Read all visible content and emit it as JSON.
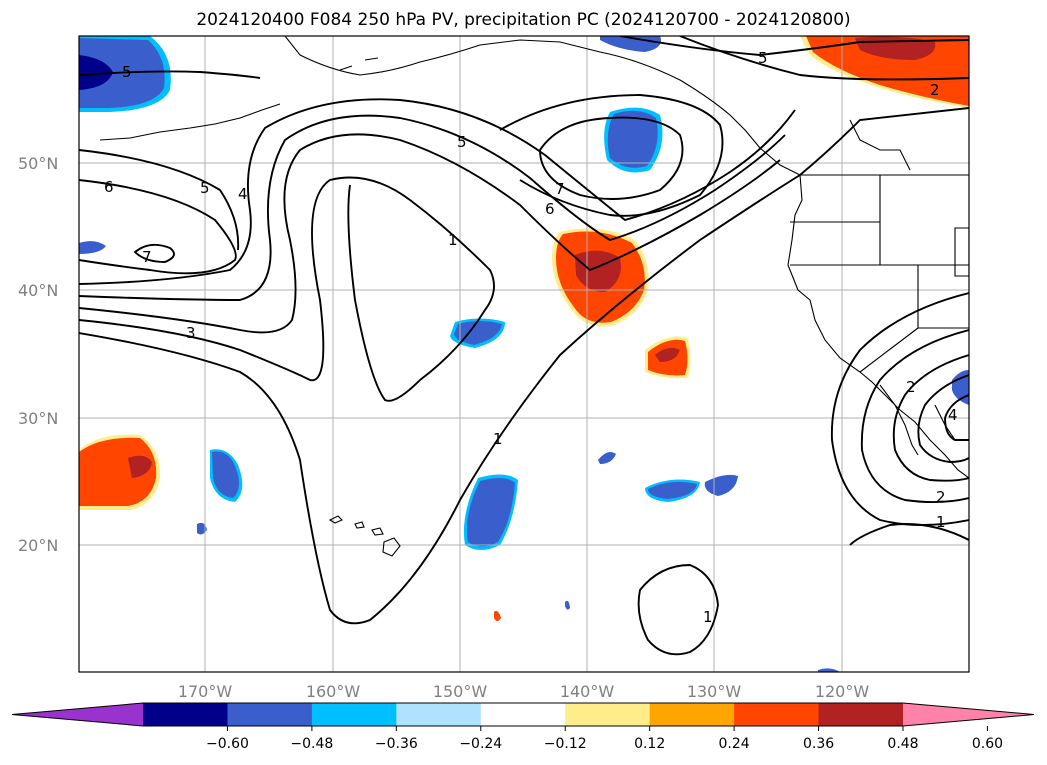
{
  "title": "2024120400 F084 250 hPa PV, precipitation PC (2024120700 - 2024120800)",
  "lat_labels": [
    "50°N",
    "40°N",
    "30°N",
    "20°N"
  ],
  "lon_labels": [
    "170°W",
    "160°W",
    "150°W",
    "140°W",
    "130°W",
    "120°W"
  ],
  "contour_labels": [
    "5",
    "5",
    "2",
    "6",
    "5",
    "4",
    "7",
    "1",
    "5",
    "7",
    "6",
    "3",
    "1",
    "1",
    "2",
    "1",
    "2",
    "4"
  ],
  "colorbar": {
    "ticks": [
      "−0.60",
      "−0.48",
      "−0.36",
      "−0.24",
      "−0.12",
      "0.12",
      "0.24",
      "0.36",
      "0.48",
      "0.60"
    ],
    "colors": [
      "#9a32cd",
      "#00008b",
      "#3a5fcd",
      "#00bfff",
      "#b0e2ff",
      "#ffffff",
      "#ffec8b",
      "#ffa500",
      "#ff4500",
      "#b22222",
      "#ff82ab"
    ]
  }
}
